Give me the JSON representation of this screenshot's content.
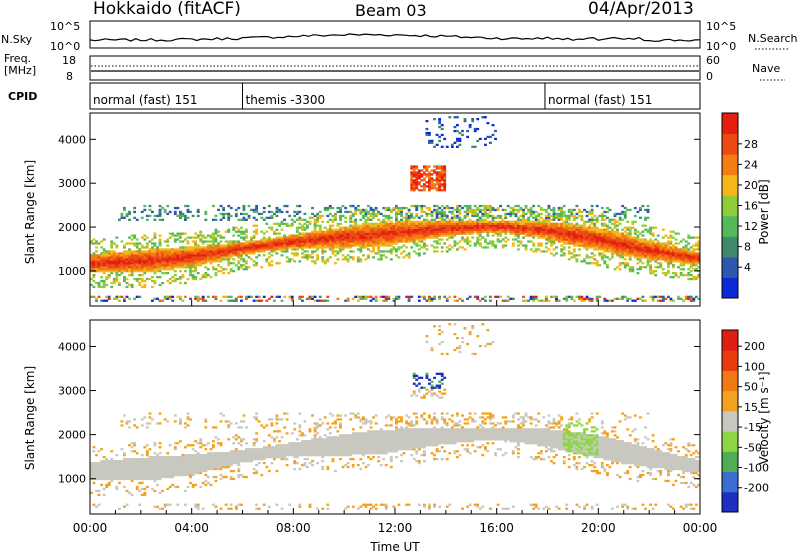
{
  "header": {
    "station": "Hokkaido (fitACF)",
    "beam": "Beam 03",
    "date": "04/Apr/2013"
  },
  "sky_panel": {
    "label": "N.Sky",
    "left_ticks": [
      "10^5",
      "10^0"
    ],
    "right_ticks": [
      "10^5",
      "10^0"
    ],
    "right_label": "N.Search"
  },
  "freq_panel": {
    "label_line1": "Freq.",
    "label_line2": "[MHz]",
    "left_ticks": [
      "18",
      "8"
    ],
    "right_ticks": [
      "60",
      "0"
    ],
    "right_label": "Nave"
  },
  "cpid_panel": {
    "label": "CPID",
    "segments": [
      {
        "label": "normal (fast) 151",
        "start_hour": 0,
        "end_hour": 6
      },
      {
        "label": "themis -3300",
        "start_hour": 6,
        "end_hour": 17.9
      },
      {
        "label": "normal (fast) 151",
        "start_hour": 17.9,
        "end_hour": 24
      }
    ]
  },
  "chart_data": [
    {
      "type": "heatmap",
      "quantity": "Power",
      "ylabel": "Slant Range [km]",
      "ylim": [
        200,
        4600
      ],
      "y_ticks": [
        1000,
        2000,
        3000,
        4000
      ],
      "xlim": [
        0,
        24
      ],
      "colorbar": {
        "label": "Power [dB]",
        "ticks": [
          "28",
          "24",
          "20",
          "16",
          "12",
          "8",
          "4"
        ],
        "range": [
          0,
          32
        ],
        "colors": [
          "#0a2ad8",
          "#2e58b0",
          "#3f8a6a",
          "#55b85a",
          "#8dcd3a",
          "#f6b619",
          "#f27d12",
          "#ec4a12",
          "#e61e10"
        ]
      },
      "bands": [
        {
          "name": "main-echo",
          "points": [
            [
              0,
              1150
            ],
            [
              2,
              1200
            ],
            [
              4,
              1300
            ],
            [
              6,
              1500
            ],
            [
              8,
              1650
            ],
            [
              10,
              1750
            ],
            [
              12,
              1850
            ],
            [
              14,
              1950
            ],
            [
              16,
              2000
            ],
            [
              18,
              1900
            ],
            [
              20,
              1700
            ],
            [
              22,
              1450
            ],
            [
              24,
              1250
            ]
          ],
          "width": 420
        }
      ]
    },
    {
      "type": "heatmap",
      "quantity": "Velocity",
      "ylabel": "Slant Range [km]",
      "ylim": [
        200,
        4600
      ],
      "y_ticks": [
        1000,
        2000,
        3000,
        4000
      ],
      "xlim": [
        0,
        24
      ],
      "colorbar": {
        "label": "Velocity [m s⁻¹]",
        "ticks": [
          "200",
          "100",
          "50",
          "15",
          "-15",
          "-50",
          "-100",
          "-200"
        ],
        "colors": [
          "#1f2fbf",
          "#3a6ed0",
          "#4fae55",
          "#8ed646",
          "#c8c8c0",
          "#f3a21f",
          "#ef7a14",
          "#ea3b10",
          "#e01f10"
        ]
      }
    }
  ],
  "x_axis": {
    "label": "Time UT",
    "ticks": [
      "00:00",
      "04:00",
      "08:00",
      "12:00",
      "16:00",
      "20:00",
      "00:00"
    ]
  }
}
